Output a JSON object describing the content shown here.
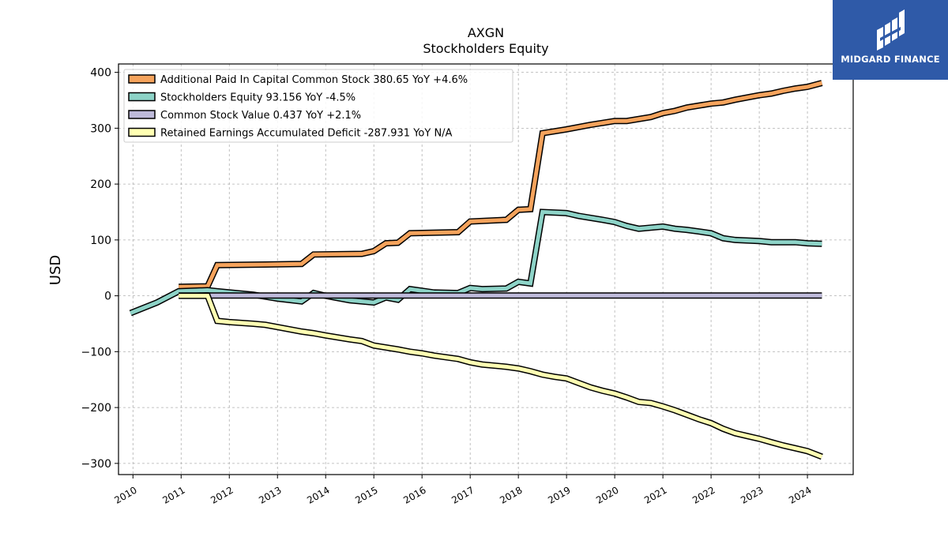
{
  "chart_data": {
    "type": "line",
    "title": "AXGN",
    "subtitle": "Stockholders  Equity",
    "ylabel": "USD",
    "xlabel": "",
    "xlim": [
      2009.7,
      2024.95
    ],
    "ylim": [
      -320,
      415
    ],
    "yticks": [
      400,
      300,
      200,
      100,
      0,
      -100,
      -200,
      -300
    ],
    "ytick_labels": [
      "400",
      "300",
      "200",
      "100",
      "0",
      "−100",
      "−200",
      "−300"
    ],
    "xticks": [
      2010,
      2011,
      2012,
      2013,
      2014,
      2015,
      2016,
      2017,
      2018,
      2019,
      2020,
      2021,
      2022,
      2023,
      2024
    ],
    "grid": true,
    "legend_position": "top-left",
    "series": [
      {
        "name": "Additional Paid In Capital Common Stock  380.65 YoY +4.6%",
        "color": "#f5a35c",
        "x": [
          2010.95,
          2011.55,
          2011.75,
          2012.75,
          2013.5,
          2013.75,
          2014.75,
          2015.0,
          2015.25,
          2015.5,
          2015.75,
          2016.75,
          2017.0,
          2017.75,
          2018.0,
          2018.25,
          2018.5,
          2019.0,
          2019.5,
          2020.0,
          2020.25,
          2020.75,
          2021.0,
          2021.25,
          2021.5,
          2022.0,
          2022.25,
          2022.5,
          2022.75,
          2023.0,
          2023.25,
          2023.5,
          2023.75,
          2024.0,
          2024.3
        ],
        "values": [
          16,
          17,
          55,
          56,
          57,
          74,
          75,
          80,
          94,
          95,
          112,
          114,
          133,
          136,
          154,
          155,
          291,
          298,
          306,
          313,
          313,
          320,
          327,
          331,
          337,
          344,
          346,
          351,
          355,
          359,
          362,
          367,
          371,
          374,
          381
        ]
      },
      {
        "name": "Stockholders Equity  93.156 YoY -4.5%",
        "color": "#8dd3c7",
        "x": [
          2009.95,
          2010.5,
          2010.95,
          2011.55,
          2011.75,
          2012.5,
          2013.0,
          2013.5,
          2013.75,
          2014.0,
          2014.5,
          2015.0,
          2015.25,
          2015.5,
          2015.75,
          2016.25,
          2016.75,
          2017.0,
          2017.25,
          2017.75,
          2018.0,
          2018.25,
          2018.5,
          2019.0,
          2019.25,
          2019.75,
          2020.0,
          2020.25,
          2020.5,
          2020.75,
          2021.0,
          2021.25,
          2021.5,
          2021.75,
          2022.0,
          2022.25,
          2022.5,
          2023.0,
          2023.25,
          2023.5,
          2023.75,
          2024.0,
          2024.3
        ],
        "values": [
          -31,
          -12,
          8,
          10,
          8,
          2,
          -5,
          -10,
          5,
          0,
          -8,
          -12,
          -3,
          -7,
          12,
          6,
          5,
          14,
          12,
          13,
          25,
          22,
          150,
          148,
          143,
          136,
          132,
          125,
          120,
          122,
          124,
          120,
          118,
          115,
          112,
          103,
          100,
          98,
          96,
          96,
          96,
          94,
          93
        ]
      },
      {
        "name": "Common Stock Value  0.437 YoY +2.1%",
        "color": "#bebada",
        "x": [
          2010.95,
          2024.3
        ],
        "values": [
          0.4,
          0.437
        ]
      },
      {
        "name": "Retained Earnings Accumulated Deficit  -287.931 YoY N/A",
        "color": "#ffffb3",
        "x": [
          2010.95,
          2011.55,
          2011.75,
          2012.0,
          2012.5,
          2012.75,
          2013.0,
          2013.5,
          2013.75,
          2014.0,
          2014.5,
          2014.75,
          2015.0,
          2015.5,
          2015.75,
          2016.0,
          2016.25,
          2016.75,
          2017.0,
          2017.25,
          2017.75,
          2018.0,
          2018.25,
          2018.5,
          2018.75,
          2019.0,
          2019.25,
          2019.5,
          2019.75,
          2020.0,
          2020.25,
          2020.5,
          2020.75,
          2021.0,
          2021.25,
          2021.5,
          2021.75,
          2022.0,
          2022.25,
          2022.5,
          2022.75,
          2023.0,
          2023.25,
          2023.5,
          2023.75,
          2024.0,
          2024.3
        ],
        "values": [
          0,
          0,
          -45,
          -47,
          -50,
          -52,
          -56,
          -64,
          -67,
          -71,
          -78,
          -81,
          -89,
          -96,
          -100,
          -103,
          -107,
          -113,
          -119,
          -123,
          -127,
          -130,
          -135,
          -141,
          -145,
          -148,
          -156,
          -164,
          -170,
          -175,
          -182,
          -190,
          -192,
          -198,
          -205,
          -213,
          -221,
          -228,
          -238,
          -246,
          -251,
          -256,
          -262,
          -268,
          -273,
          -278,
          -288
        ]
      }
    ]
  },
  "logo": {
    "text": "MIDGARD FINANCE",
    "background": "#2f5aa8",
    "icon": "midgard-logo-icon"
  }
}
